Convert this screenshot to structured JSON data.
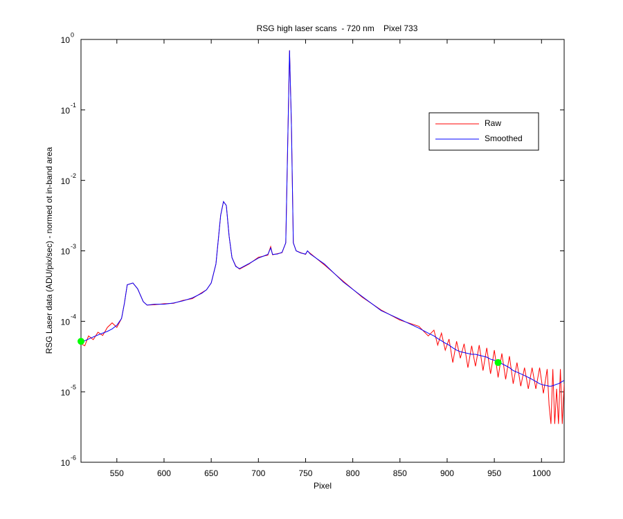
{
  "chart_data": {
    "type": "line",
    "title": "RSG high laser scans  - 720 nm    Pixel 733",
    "xlabel": "Pixel",
    "ylabel": "RSG Laser data (ADU/pix/sec) - normed ot in-band area",
    "x": [
      512,
      516,
      520,
      525,
      530,
      535,
      540,
      545,
      550,
      555,
      558,
      561,
      567,
      572,
      578,
      582,
      590,
      600,
      610,
      620,
      630,
      640,
      645,
      650,
      655,
      660,
      663,
      666,
      669,
      672,
      676,
      680,
      690,
      700,
      710,
      713,
      715,
      720,
      725,
      729,
      731,
      733,
      735,
      737,
      740,
      745,
      750,
      752,
      755,
      770,
      790,
      810,
      830,
      850,
      870,
      880,
      886,
      890,
      894,
      898,
      902,
      906,
      910,
      914,
      918,
      922,
      926,
      930,
      934,
      938,
      942,
      946,
      950,
      954,
      958,
      962,
      966,
      970,
      974,
      978,
      982,
      986,
      990,
      994,
      998,
      1002,
      1006,
      1008,
      1010,
      1012,
      1014,
      1016,
      1018,
      1020,
      1022,
      1024
    ],
    "series": [
      {
        "name": "Raw",
        "color": "#ff0000",
        "values": [
          4.8e-05,
          4.5e-05,
          6.2e-05,
          5.5e-05,
          7e-05,
          6.3e-05,
          8.2e-05,
          9.5e-05,
          8.2e-05,
          0.00011,
          0.00018,
          0.00033,
          0.00035,
          0.00029,
          0.00019,
          0.00017,
          0.000172,
          0.000178,
          0.00018,
          0.000198,
          0.00021,
          0.000255,
          0.00028,
          0.00035,
          0.00065,
          0.0032,
          0.005,
          0.0044,
          0.0016,
          0.0008,
          0.00061,
          0.00055,
          0.00065,
          0.00081,
          0.00087,
          0.00115,
          0.00088,
          0.00091,
          0.00094,
          0.0013,
          0.03,
          0.7,
          0.06,
          0.0013,
          0.001,
          0.00094,
          0.00089,
          0.001,
          0.00092,
          0.00063,
          0.00037,
          0.00022,
          0.000145,
          0.000104,
          8.5e-05,
          6.2e-05,
          7.5e-05,
          4.6e-05,
          6.8e-05,
          3.9e-05,
          5.6e-05,
          2.6e-05,
          5.2e-05,
          3e-05,
          4.8e-05,
          2.2e-05,
          4.5e-05,
          2.3e-05,
          4.6e-05,
          2e-05,
          4.2e-05,
          1.8e-05,
          3.9e-05,
          1.6e-05,
          3.5e-05,
          1.5e-05,
          3.2e-05,
          1.3e-05,
          2.6e-05,
          1.2e-05,
          2.2e-05,
          1.1e-05,
          2.2e-05,
          1.1e-05,
          2.2e-05,
          9.5e-06,
          2.1e-05,
          6.5e-06,
          3.5e-06,
          2.1e-05,
          3.5e-06,
          1.1e-05,
          3.5e-06,
          2.1e-05,
          3.5e-06,
          1.3e-05
        ]
      },
      {
        "name": "Smoothed",
        "color": "#0000ff",
        "values": [
          5e-05,
          5.3e-05,
          5.6e-05,
          6e-05,
          6.4e-05,
          6.8e-05,
          7.2e-05,
          7.8e-05,
          8.8e-05,
          0.00011,
          0.00018,
          0.00033,
          0.00035,
          0.00029,
          0.00019,
          0.00017,
          0.000175,
          0.000175,
          0.000182,
          0.000195,
          0.000215,
          0.00025,
          0.00028,
          0.00035,
          0.00065,
          0.0032,
          0.005,
          0.0044,
          0.0016,
          0.0008,
          0.0006,
          0.00056,
          0.00066,
          0.00079,
          0.00089,
          0.0011,
          0.00089,
          0.0009,
          0.00095,
          0.0013,
          0.03,
          0.7,
          0.06,
          0.0013,
          0.001,
          0.00093,
          0.0009,
          0.001,
          0.0009,
          0.00065,
          0.00036,
          0.000225,
          0.000142,
          0.000107,
          8e-05,
          6.8e-05,
          6.2e-05,
          5.7e-05,
          5.3e-05,
          4.9e-05,
          4.6e-05,
          4.2e-05,
          3.9e-05,
          3.7e-05,
          3.6e-05,
          3.5e-05,
          3.4e-05,
          3.4e-05,
          3.3e-05,
          3.2e-05,
          3.1e-05,
          2.9e-05,
          2.8e-05,
          2.6e-05,
          2.5e-05,
          2.35e-05,
          2.2e-05,
          2e-05,
          1.9e-05,
          1.8e-05,
          1.7e-05,
          1.6e-05,
          1.5e-05,
          1.4e-05,
          1.3e-05,
          1.25e-05,
          1.22e-05,
          1.2e-05,
          1.2e-05,
          1.22e-05,
          1.25e-05,
          1.28e-05,
          1.3e-05,
          1.35e-05,
          1.4e-05,
          1.45e-05
        ]
      }
    ],
    "points": {
      "color": "#00ff00",
      "x": [
        512,
        954
      ],
      "values": [
        5.2e-05,
        2.6e-05
      ]
    },
    "xlim": [
      512,
      1024
    ],
    "xticks": [
      550,
      600,
      650,
      700,
      750,
      800,
      850,
      900,
      950,
      1000
    ],
    "ylim": [
      1e-06,
      1
    ],
    "ylog": true,
    "yticks": [
      {
        "value": 1e-06,
        "label": "10",
        "exponent": "-6"
      },
      {
        "value": 1e-05,
        "label": "10",
        "exponent": "-5"
      },
      {
        "value": 0.0001,
        "label": "10",
        "exponent": "-4"
      },
      {
        "value": 0.001,
        "label": "10",
        "exponent": "-3"
      },
      {
        "value": 0.01,
        "label": "10",
        "exponent": "-2"
      },
      {
        "value": 0.1,
        "label": "10",
        "exponent": "-1"
      },
      {
        "value": 1,
        "label": "10",
        "exponent": "0"
      }
    ],
    "legend": "northeast"
  }
}
